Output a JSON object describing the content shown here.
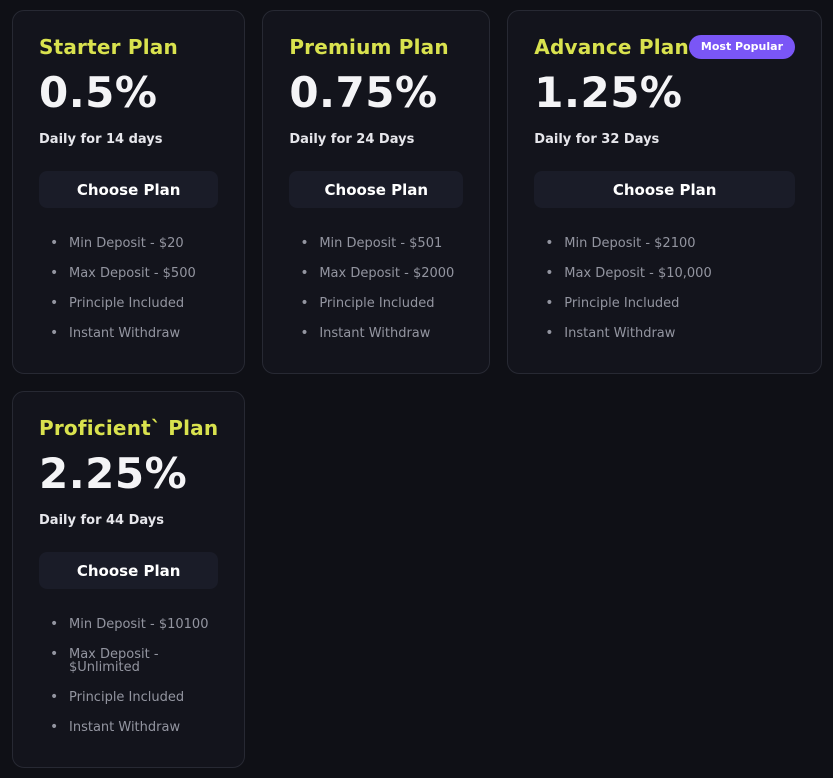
{
  "colors": {
    "page_bg": "#0f1016",
    "card_bg": "#13141c",
    "card_border": "#272933",
    "accent_title": "#d9e24e",
    "badge_bg": "#7a56f6",
    "rate_text": "#f4f4f6",
    "muted_text": "#9395a0",
    "button_bg": "#1a1c28"
  },
  "plans": [
    {
      "name": "Starter Plan",
      "rate": "0.5%",
      "duration": "Daily for 14 days",
      "button_label": "Choose Plan",
      "features": [
        "Min Deposit - $20",
        "Max Deposit - $500",
        "Principle Included",
        "Instant Withdraw"
      ]
    },
    {
      "name": "Premium Plan",
      "rate": "0.75%",
      "duration": "Daily for 24 Days",
      "button_label": "Choose Plan",
      "features": [
        "Min Deposit - $501",
        "Max Deposit - $2000",
        "Principle Included",
        "Instant Withdraw"
      ]
    },
    {
      "name": "Advance Plan",
      "badge": "Most Popular",
      "rate": "1.25%",
      "duration": "Daily for 32 Days",
      "button_label": "Choose Plan",
      "features": [
        "Min Deposit - $2100",
        "Max Deposit - $10,000",
        "Principle Included",
        "Instant Withdraw"
      ]
    },
    {
      "name": "Proficient` Plan",
      "rate": "2.25%",
      "duration": "Daily for 44 Days",
      "button_label": "Choose Plan",
      "features": [
        "Min Deposit - $10100",
        "Max Deposit - $Unlimited",
        "Principle Included",
        "Instant Withdraw"
      ]
    }
  ]
}
